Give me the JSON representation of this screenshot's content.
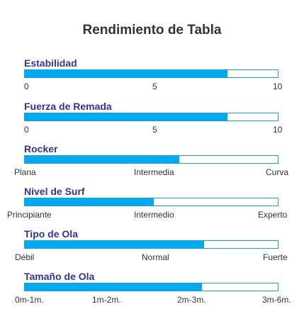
{
  "title": "Rendimiento de Tabla",
  "colors": {
    "accent": "#00aaee",
    "label": "#33339a",
    "text": "#333333"
  },
  "metrics": [
    {
      "label": "Estabilidad",
      "fraction": 0.8,
      "ticks": [
        "0",
        "5",
        "10"
      ]
    },
    {
      "label": "Fuerza de Remada",
      "fraction": 0.8,
      "ticks": [
        "0",
        "5",
        "10"
      ]
    },
    {
      "label": "Rocker",
      "fraction": 0.61,
      "ticks": [
        "Plana",
        "Intermedia",
        "Curva"
      ]
    },
    {
      "label": "Nivel de Surf",
      "fraction": 0.51,
      "ticks": [
        "Principiante",
        "Intermedio",
        "Experto"
      ]
    },
    {
      "label": "Tipo de Ola",
      "fraction": 0.71,
      "ticks": [
        "Débil",
        "Normal",
        "Fuerte"
      ]
    },
    {
      "label": "Tamaño de Ola",
      "fraction": 0.7,
      "ticks": [
        "0m-1m.",
        "1m-2m.",
        "2m-3m.",
        "3m-6m."
      ]
    }
  ]
}
